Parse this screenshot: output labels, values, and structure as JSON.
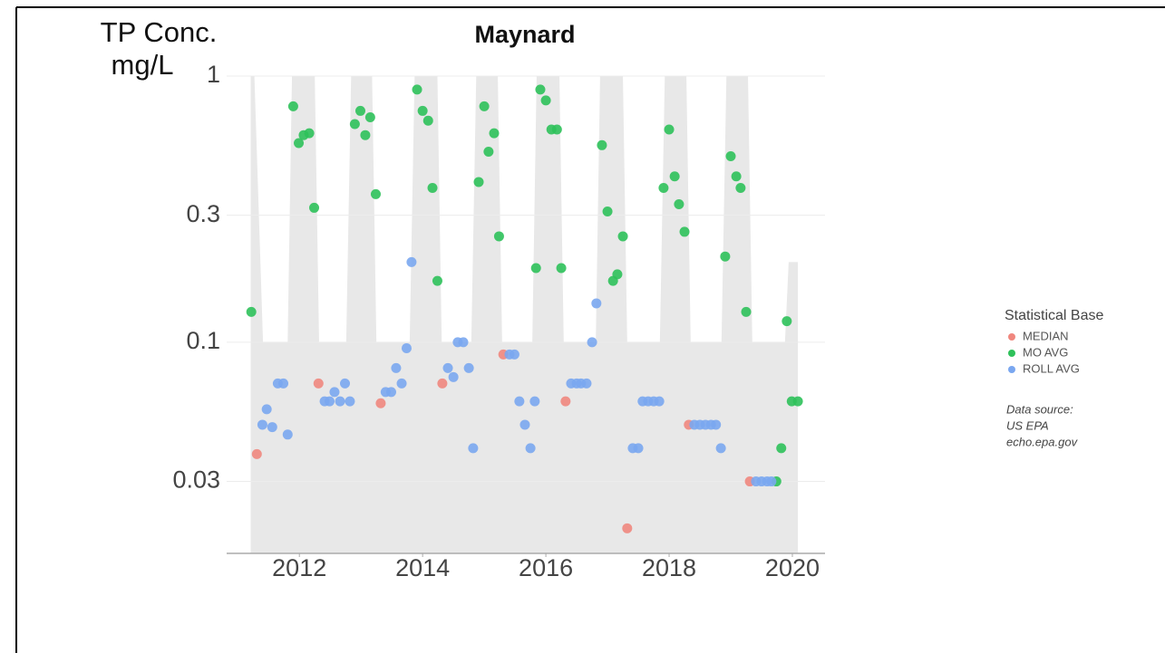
{
  "chart_data": {
    "type": "scatter",
    "title": "Maynard",
    "y_label": [
      "TP Conc.",
      "mg/L"
    ],
    "xlim": [
      2010.82,
      2020.53
    ],
    "xticks": [
      2012,
      2014,
      2016,
      2018,
      2020
    ],
    "ylim": [
      0.0161,
      1
    ],
    "yticks": [
      0.03,
      0.1,
      0.3,
      1
    ],
    "y_log": true,
    "grid": true,
    "legend_title": "Statistical Base",
    "legend_position": "right",
    "source": [
      "Data source:",
      "US EPA",
      "echo.epa.gov"
    ],
    "band": {
      "color": "#e8e8e8",
      "x": [
        2011.21,
        2011.27,
        2011.41,
        2011.81,
        2011.88,
        2012.25,
        2012.32,
        2012.76,
        2012.84,
        2013.18,
        2013.25,
        2013.79,
        2013.87,
        2014.24,
        2014.31,
        2014.79,
        2014.87,
        2015.22,
        2015.29,
        2015.78,
        2015.85,
        2016.22,
        2016.29,
        2016.81,
        2016.88,
        2017.25,
        2017.32,
        2017.85,
        2017.93,
        2018.28,
        2018.35,
        2018.85,
        2018.93,
        2019.28,
        2019.35,
        2019.88,
        2019.94,
        2020.09
      ],
      "y": [
        1,
        1,
        0.1,
        0.1,
        1,
        1,
        0.1,
        0.1,
        1,
        1,
        0.1,
        0.1,
        1,
        1,
        0.1,
        0.1,
        1,
        1,
        0.1,
        0.1,
        1,
        1,
        0.1,
        0.1,
        1,
        1,
        0.1,
        0.1,
        1,
        1,
        0.1,
        0.1,
        1,
        1,
        0.1,
        0.1,
        0.2,
        0.2
      ]
    },
    "series": [
      {
        "name": "MEDIAN",
        "color": "#f0877e",
        "x": [
          2011.31,
          2012.31,
          2013.32,
          2014.32,
          2015.31,
          2016.32,
          2017.32,
          2018.32,
          2019.31
        ],
        "values": [
          0.038,
          0.07,
          0.059,
          0.07,
          0.09,
          0.06,
          0.02,
          0.049,
          0.03
        ]
      },
      {
        "name": "MO AVG",
        "color": "#2ec15a",
        "x": [
          2011.22,
          2011.9,
          2011.99,
          2012.07,
          2012.16,
          2012.24,
          2012.9,
          2012.99,
          2013.07,
          2013.15,
          2013.24,
          2013.91,
          2014.0,
          2014.09,
          2014.16,
          2014.24,
          2014.91,
          2015.0,
          2015.07,
          2015.16,
          2015.24,
          2015.84,
          2015.91,
          2016.0,
          2016.09,
          2016.18,
          2016.25,
          2016.91,
          2017.0,
          2017.09,
          2017.16,
          2017.25,
          2017.91,
          2018.0,
          2018.09,
          2018.16,
          2018.25,
          2018.91,
          2019.0,
          2019.09,
          2019.16,
          2019.25,
          2019.74,
          2019.82,
          2019.91,
          2019.99,
          2020.09
        ],
        "values": [
          0.13,
          0.77,
          0.56,
          0.6,
          0.61,
          0.32,
          0.66,
          0.74,
          0.6,
          0.7,
          0.36,
          0.89,
          0.74,
          0.68,
          0.38,
          0.17,
          0.4,
          0.77,
          0.52,
          0.61,
          0.25,
          0.19,
          0.89,
          0.81,
          0.63,
          0.63,
          0.19,
          0.55,
          0.31,
          0.17,
          0.18,
          0.25,
          0.38,
          0.63,
          0.42,
          0.33,
          0.26,
          0.21,
          0.5,
          0.42,
          0.38,
          0.13,
          0.03,
          0.04,
          0.12,
          0.06,
          0.06
        ]
      },
      {
        "name": "ROLL AVG",
        "color": "#7aa7f0",
        "x": [
          2011.4,
          2011.47,
          2011.56,
          2011.65,
          2011.74,
          2011.81,
          2012.41,
          2012.49,
          2012.57,
          2012.66,
          2012.74,
          2012.82,
          2013.4,
          2013.49,
          2013.57,
          2013.66,
          2013.74,
          2013.82,
          2014.41,
          2014.5,
          2014.57,
          2014.66,
          2014.75,
          2014.82,
          2015.41,
          2015.49,
          2015.57,
          2015.66,
          2015.75,
          2015.82,
          2016.41,
          2016.5,
          2016.57,
          2016.66,
          2016.75,
          2016.82,
          2017.41,
          2017.5,
          2017.57,
          2017.66,
          2017.75,
          2017.84,
          2018.41,
          2018.5,
          2018.59,
          2018.68,
          2018.76,
          2018.84,
          2019.41,
          2019.5,
          2019.59,
          2019.66
        ],
        "values": [
          0.049,
          0.056,
          0.048,
          0.07,
          0.07,
          0.045,
          0.06,
          0.06,
          0.065,
          0.06,
          0.07,
          0.06,
          0.065,
          0.065,
          0.08,
          0.07,
          0.095,
          0.2,
          0.08,
          0.074,
          0.1,
          0.1,
          0.08,
          0.04,
          0.09,
          0.09,
          0.06,
          0.049,
          0.04,
          0.06,
          0.07,
          0.07,
          0.07,
          0.07,
          0.1,
          0.14,
          0.04,
          0.04,
          0.06,
          0.06,
          0.06,
          0.06,
          0.049,
          0.049,
          0.049,
          0.049,
          0.049,
          0.04,
          0.03,
          0.03,
          0.03,
          0.03
        ]
      }
    ]
  }
}
